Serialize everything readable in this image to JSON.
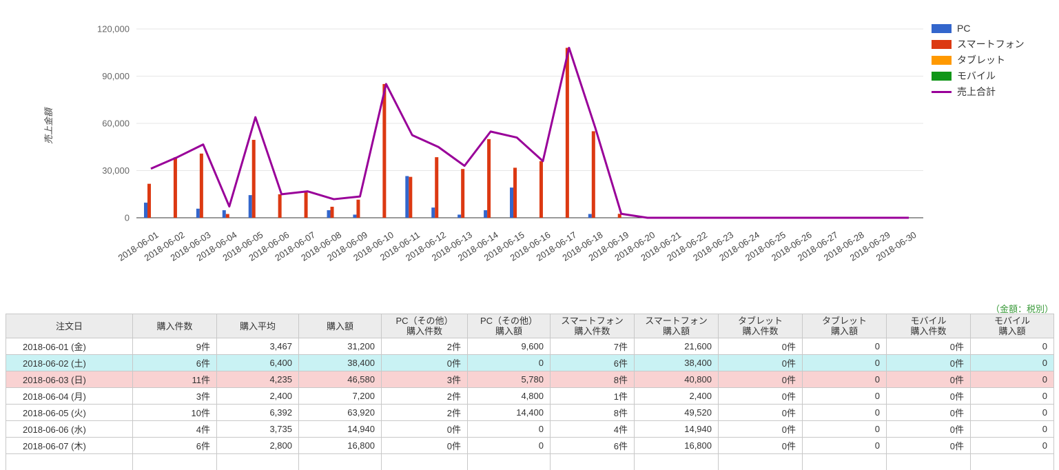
{
  "chart": {
    "y_axis_title": "売上金額",
    "y_tick_labels": [
      "0",
      "30,000",
      "60,000",
      "90,000",
      "120,000"
    ],
    "legend": [
      {
        "label": "PC",
        "color": "#3366CC",
        "type": "box"
      },
      {
        "label": "スマートフォン",
        "color": "#DC3912",
        "type": "box"
      },
      {
        "label": "タブレット",
        "color": "#FF9900",
        "type": "box"
      },
      {
        "label": "モバイル",
        "color": "#109618",
        "type": "box"
      },
      {
        "label": "売上合計",
        "color": "#990099",
        "type": "line"
      }
    ]
  },
  "chart_data": {
    "type": "bar",
    "title": "",
    "xlabel": "",
    "ylabel": "売上金額",
    "ylim": [
      0,
      120000
    ],
    "y_ticks": [
      0,
      30000,
      60000,
      90000,
      120000
    ],
    "grid": true,
    "legend_position": "right",
    "categories": [
      "2018-06-01",
      "2018-06-02",
      "2018-06-03",
      "2018-06-04",
      "2018-06-05",
      "2018-06-06",
      "2018-06-07",
      "2018-06-08",
      "2018-06-09",
      "2018-06-10",
      "2018-06-11",
      "2018-06-12",
      "2018-06-13",
      "2018-06-14",
      "2018-06-15",
      "2018-06-16",
      "2018-06-17",
      "2018-06-18",
      "2018-06-19",
      "2018-06-20",
      "2018-06-21",
      "2018-06-22",
      "2018-06-23",
      "2018-06-24",
      "2018-06-25",
      "2018-06-26",
      "2018-06-27",
      "2018-06-28",
      "2018-06-29",
      "2018-06-30"
    ],
    "series": [
      {
        "name": "PC",
        "type": "bar",
        "color": "#3366CC",
        "values": [
          9600,
          0,
          5780,
          4800,
          14400,
          0,
          0,
          4800,
          2000,
          0,
          26500,
          6500,
          2000,
          4800,
          19200,
          0,
          0,
          2400,
          0,
          0,
          0,
          0,
          0,
          0,
          0,
          0,
          0,
          0,
          0,
          0
        ]
      },
      {
        "name": "スマートフォン",
        "type": "bar",
        "color": "#DC3912",
        "values": [
          21600,
          38400,
          40800,
          2400,
          49520,
          14940,
          16800,
          7000,
          11500,
          85000,
          26000,
          38500,
          31000,
          50000,
          31800,
          36000,
          108000,
          55000,
          2500,
          0,
          0,
          0,
          0,
          0,
          0,
          0,
          0,
          0,
          0,
          0
        ]
      },
      {
        "name": "タブレット",
        "type": "bar",
        "color": "#FF9900",
        "values": [
          0,
          0,
          0,
          0,
          0,
          0,
          0,
          0,
          0,
          0,
          0,
          0,
          0,
          0,
          0,
          0,
          0,
          0,
          0,
          0,
          0,
          0,
          0,
          0,
          0,
          0,
          0,
          0,
          0,
          0
        ]
      },
      {
        "name": "モバイル",
        "type": "bar",
        "color": "#109618",
        "values": [
          0,
          0,
          0,
          0,
          0,
          0,
          0,
          0,
          0,
          0,
          0,
          0,
          0,
          0,
          0,
          0,
          0,
          0,
          0,
          0,
          0,
          0,
          0,
          0,
          0,
          0,
          0,
          0,
          0,
          0
        ]
      },
      {
        "name": "売上合計",
        "type": "line",
        "color": "#990099",
        "values": [
          31200,
          38400,
          46580,
          7200,
          63920,
          14940,
          16800,
          11800,
          13500,
          85000,
          52500,
          45000,
          33000,
          54800,
          51000,
          36000,
          108000,
          57400,
          2500,
          0,
          0,
          0,
          0,
          0,
          0,
          0,
          0,
          0,
          0,
          0
        ]
      }
    ]
  },
  "table": {
    "tax_note": "（金額：税別）",
    "columns": [
      "注文日",
      "購入件数",
      "購入平均",
      "購入額",
      "PC（その他）\n購入件数",
      "PC（その他）\n購入額",
      "スマートフォン\n購入件数",
      "スマートフォン\n購入額",
      "タブレット\n購入件数",
      "タブレット\n購入額",
      "モバイル\n購入件数",
      "モバイル\n購入額"
    ],
    "rows": [
      {
        "highlight": "none",
        "cells": [
          "2018-06-01 (金)",
          "9件",
          "3,467",
          "31,200",
          "2件",
          "9,600",
          "7件",
          "21,600",
          "0件",
          "0",
          "0件",
          "0"
        ]
      },
      {
        "highlight": "saturday",
        "cells": [
          "2018-06-02 (土)",
          "6件",
          "6,400",
          "38,400",
          "0件",
          "0",
          "6件",
          "38,400",
          "0件",
          "0",
          "0件",
          "0"
        ]
      },
      {
        "highlight": "sunday",
        "cells": [
          "2018-06-03 (日)",
          "11件",
          "4,235",
          "46,580",
          "3件",
          "5,780",
          "8件",
          "40,800",
          "0件",
          "0",
          "0件",
          "0"
        ]
      },
      {
        "highlight": "none",
        "cells": [
          "2018-06-04 (月)",
          "3件",
          "2,400",
          "7,200",
          "2件",
          "4,800",
          "1件",
          "2,400",
          "0件",
          "0",
          "0件",
          "0"
        ]
      },
      {
        "highlight": "none",
        "cells": [
          "2018-06-05 (火)",
          "10件",
          "6,392",
          "63,920",
          "2件",
          "14,400",
          "8件",
          "49,520",
          "0件",
          "0",
          "0件",
          "0"
        ]
      },
      {
        "highlight": "none",
        "cells": [
          "2018-06-06 (水)",
          "4件",
          "3,735",
          "14,940",
          "0件",
          "0",
          "4件",
          "14,940",
          "0件",
          "0",
          "0件",
          "0"
        ]
      },
      {
        "highlight": "none",
        "cells": [
          "2018-06-07 (木)",
          "6件",
          "2,800",
          "16,800",
          "0件",
          "0",
          "6件",
          "16,800",
          "0件",
          "0",
          "0件",
          "0"
        ]
      }
    ],
    "partial_next_row": true
  }
}
